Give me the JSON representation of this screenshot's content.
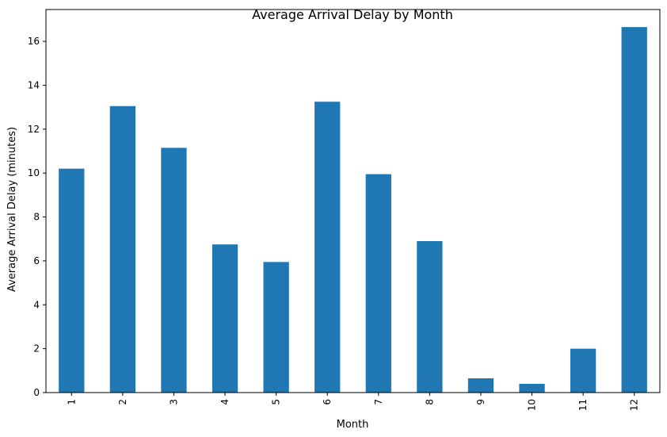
{
  "chart_data": {
    "type": "bar",
    "title": "Average Arrival Delay by Month",
    "xlabel": "Month",
    "ylabel": "Average Arrival Delay (minutes)",
    "categories": [
      "1",
      "2",
      "3",
      "4",
      "5",
      "6",
      "7",
      "8",
      "9",
      "10",
      "11",
      "12"
    ],
    "values": [
      10.2,
      13.05,
      11.15,
      6.75,
      5.95,
      13.25,
      9.95,
      6.9,
      0.65,
      0.4,
      2.0,
      16.65
    ],
    "ylim": [
      0,
      17.45
    ],
    "yticks": [
      0,
      2,
      4,
      6,
      8,
      10,
      12,
      14,
      16
    ],
    "bar_color": "#1f77b4",
    "grid": false,
    "legend": "none"
  }
}
